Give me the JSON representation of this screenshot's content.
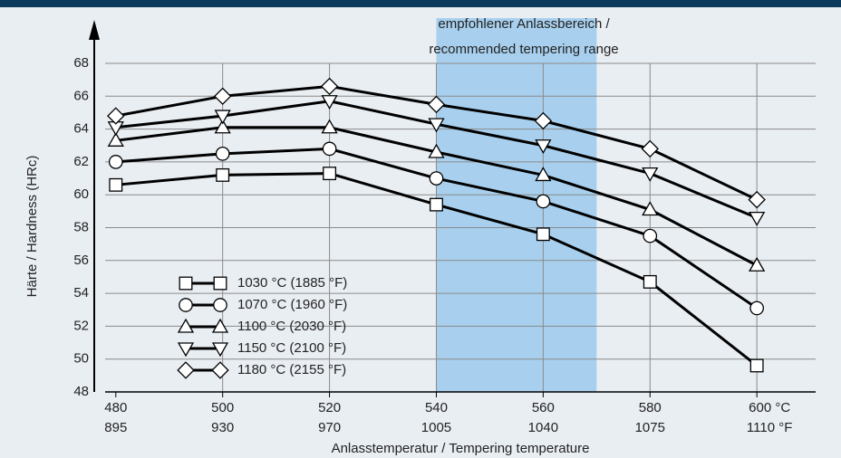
{
  "chart_data": {
    "type": "line",
    "annotation": [
      "empfohlener Anlassbereich /",
      "recommended tempering range"
    ],
    "highlight_range": [
      540,
      570
    ],
    "highlight_color": "#a8d0ee",
    "xlabel": "Anlasstemperatur / Tempering temperature",
    "ylabel": "Härte / Hardness (HRc)",
    "x": [
      480,
      500,
      520,
      540,
      560,
      580,
      600
    ],
    "xlim": [
      478,
      611
    ],
    "xticks": [
      480,
      500,
      520,
      540,
      560,
      {
        "value": 580,
        "label": "580"
      },
      {
        "value": 600,
        "label": "600 °C"
      }
    ],
    "secondary_xticks": [
      {
        "value": 480,
        "label": "895"
      },
      {
        "value": 500,
        "label": "930"
      },
      {
        "value": 520,
        "label": "970"
      },
      {
        "value": 540,
        "label": "1005"
      },
      {
        "value": 560,
        "label": "1040"
      },
      {
        "value": 580,
        "label": "1075"
      },
      {
        "value": 600,
        "label": "1110 °F"
      }
    ],
    "ylim": [
      48,
      68
    ],
    "yticks": [
      48,
      50,
      52,
      54,
      56,
      58,
      60,
      62,
      64,
      66,
      68
    ],
    "grid": true,
    "legend": "lower left",
    "series": [
      {
        "name": "1030 °C (1885 °F)",
        "marker": "square",
        "color": "#000000",
        "values": [
          60.6,
          61.2,
          61.3,
          59.4,
          57.6,
          54.7,
          49.6
        ]
      },
      {
        "name": "1070 °C (1960 °F)",
        "marker": "circle",
        "color": "#000000",
        "values": [
          62.0,
          62.5,
          62.8,
          61.0,
          59.6,
          57.5,
          53.1
        ]
      },
      {
        "name": "1100 °C (2030 °F)",
        "marker": "triangle-up",
        "color": "#000000",
        "values": [
          63.3,
          64.1,
          64.1,
          62.6,
          61.2,
          59.1,
          55.7
        ]
      },
      {
        "name": "1150 °C (2100 °F)",
        "marker": "triangle-down",
        "color": "#000000",
        "values": [
          64.1,
          64.8,
          65.7,
          64.3,
          63.0,
          61.3,
          58.6
        ]
      },
      {
        "name": "1180 °C (2155 °F)",
        "marker": "diamond",
        "color": "#000000",
        "values": [
          64.8,
          66.0,
          66.6,
          65.5,
          64.5,
          62.8,
          59.7
        ]
      }
    ]
  }
}
